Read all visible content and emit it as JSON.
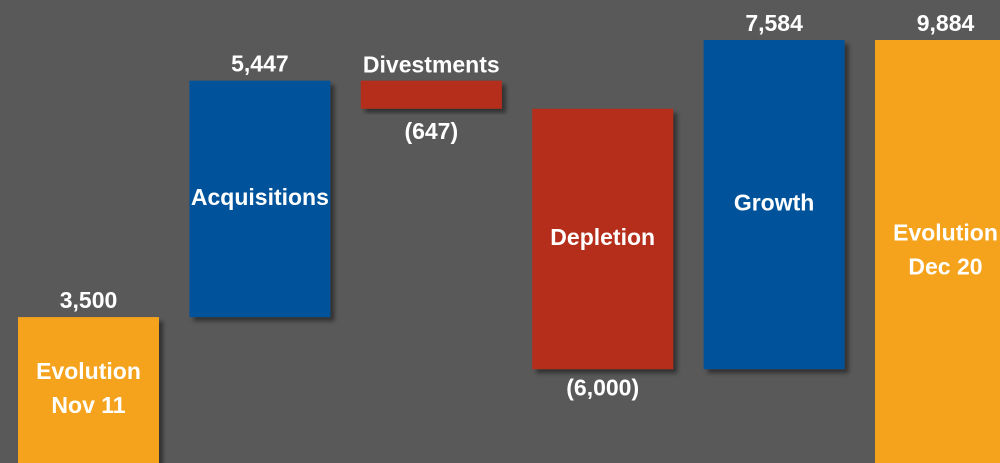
{
  "chart_data": {
    "type": "waterfall",
    "categories": [
      [
        "Evolution",
        "Nov 11"
      ],
      [
        "Acquisitions"
      ],
      [
        "Divestments"
      ],
      [
        "Depletion"
      ],
      [
        "Growth"
      ],
      [
        "Evolution",
        "Dec 20"
      ]
    ],
    "values": [
      3500,
      5447,
      -647,
      -6000,
      7584,
      9884
    ],
    "value_labels": [
      "3,500",
      "5,447",
      "(647)",
      "(6,000)",
      "7,584",
      "9,884"
    ],
    "totals": [
      0,
      5
    ],
    "colors": {
      "total": "#f5a31e",
      "increase": "#00529b",
      "decrease": "#b52e1b"
    },
    "background": "#595959"
  }
}
